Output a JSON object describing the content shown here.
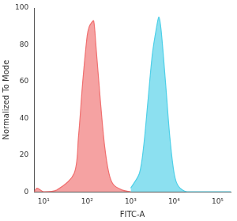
{
  "chart_data": {
    "type": "area",
    "x_label": "FITC-A",
    "y_label": "Normalized To Mode",
    "log": "x",
    "grid": false,
    "xlim": [
      6,
      200000
    ],
    "xticks": [
      {
        "value": 10,
        "label": "10¹"
      },
      {
        "value": 100,
        "label": "10²"
      },
      {
        "value": 1000,
        "label": "10³"
      },
      {
        "value": 10000,
        "label": "10⁴"
      },
      {
        "value": 100000,
        "label": "10⁵"
      }
    ],
    "ylim": [
      0,
      100
    ],
    "yticks": [
      0,
      20,
      40,
      60,
      80,
      100
    ],
    "series": [
      {
        "color": "#f07070",
        "x": [
          6,
          7,
          10,
          20,
          50,
          63,
          79,
          100,
          112,
          126,
          141,
          158,
          200,
          251,
          316,
          398,
          631,
          1000
        ],
        "values": [
          0,
          2,
          0,
          1,
          10,
          30,
          60,
          85,
          90,
          92,
          93,
          80,
          50,
          25,
          10,
          4,
          1,
          0
        ]
      },
      {
        "color": "#4fd0e8",
        "x": [
          1000,
          1585,
          1995,
          2512,
          3162,
          3981,
          4467,
          5012,
          6310,
          7943,
          10000,
          12589,
          19953,
          200000
        ],
        "values": [
          2,
          10,
          25,
          50,
          75,
          90,
          95,
          88,
          60,
          30,
          10,
          3,
          0,
          0
        ]
      }
    ]
  }
}
